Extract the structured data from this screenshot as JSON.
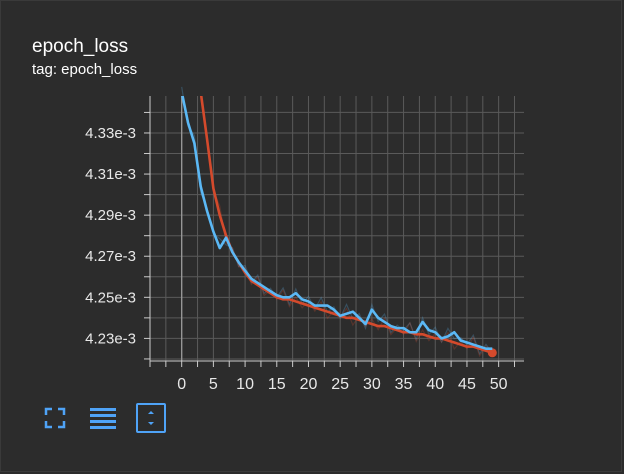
{
  "card": {
    "title": "epoch_loss",
    "subtitle": "tag: epoch_loss"
  },
  "toolbar": [
    {
      "name": "fullscreen-icon",
      "label": "Toggle expanded size"
    },
    {
      "name": "log-scale-icon",
      "label": "Toggle log scale"
    },
    {
      "name": "fit-domain-icon",
      "label": "Fit domain to data"
    }
  ],
  "colors": {
    "background": "#2c2c2c",
    "grid": "#5a5a5a",
    "axis_text": "#e8e8e8",
    "series_blue": "#5bb8f5",
    "series_red": "#d44a2c",
    "accent": "#4fa3f7"
  },
  "chart_data": {
    "type": "line",
    "title": "epoch_loss",
    "subtitle": "tag: epoch_loss",
    "xlabel": "",
    "ylabel": "",
    "xlim": [
      -5,
      54
    ],
    "ylim": [
      0.004219,
      0.004348
    ],
    "x_ticks": [
      0,
      5,
      10,
      15,
      20,
      25,
      30,
      35,
      40,
      45,
      50
    ],
    "y_ticks": [
      0.00423,
      0.00425,
      0.00427,
      0.00429,
      0.00431,
      0.00433
    ],
    "y_tick_labels": [
      "4.23e-3",
      "4.25e-3",
      "4.27e-3",
      "4.29e-3",
      "4.31e-3",
      "4.33e-3"
    ],
    "grid": true,
    "series": [
      {
        "color": "#5bb8f5",
        "x": [
          0,
          1,
          2,
          3,
          4,
          5,
          6,
          7,
          8,
          9,
          10,
          11,
          12,
          13,
          14,
          15,
          16,
          17,
          18,
          19,
          20,
          21,
          22,
          23,
          24,
          25,
          26,
          27,
          28,
          29,
          30,
          31,
          32,
          33,
          34,
          35,
          36,
          37,
          38,
          39,
          40,
          41,
          42,
          43,
          44,
          45,
          46,
          47,
          48,
          49
        ],
        "values": [
          0.00435,
          0.004335,
          0.004325,
          0.004304,
          0.004292,
          0.004282,
          0.004274,
          0.004279,
          0.004272,
          0.004267,
          0.004263,
          0.004259,
          0.004257,
          0.004255,
          0.004253,
          0.004251,
          0.00425,
          0.00425,
          0.004252,
          0.004249,
          0.004248,
          0.004246,
          0.004246,
          0.004246,
          0.004244,
          0.004241,
          0.004242,
          0.004243,
          0.00424,
          0.004237,
          0.004244,
          0.00424,
          0.004238,
          0.004236,
          0.004235,
          0.004235,
          0.004233,
          0.004233,
          0.004238,
          0.004234,
          0.004233,
          0.00423,
          0.004231,
          0.004233,
          0.004229,
          0.004228,
          0.004227,
          0.004226,
          0.004225,
          0.004225
        ]
      },
      {
        "color": "#d44a2c",
        "x": [
          3,
          4,
          5,
          6,
          7,
          8,
          9,
          10,
          11,
          12,
          13,
          14,
          15,
          16,
          17,
          18,
          19,
          20,
          21,
          22,
          23,
          24,
          25,
          26,
          27,
          28,
          29,
          30,
          31,
          32,
          33,
          34,
          35,
          36,
          37,
          38,
          39,
          40,
          41,
          42,
          43,
          44,
          45,
          46,
          47,
          48,
          49
        ],
        "values": [
          0.00435,
          0.004327,
          0.004303,
          0.00429,
          0.00428,
          0.004272,
          0.004267,
          0.004262,
          0.004258,
          0.004256,
          0.004254,
          0.004252,
          0.00425,
          0.004249,
          0.004249,
          0.004248,
          0.004247,
          0.004246,
          0.004245,
          0.004244,
          0.004243,
          0.004242,
          0.004241,
          0.00424,
          0.00424,
          0.004239,
          0.004238,
          0.004237,
          0.004236,
          0.004236,
          0.004235,
          0.004234,
          0.004233,
          0.004233,
          0.004232,
          0.004232,
          0.004231,
          0.00423,
          0.00423,
          0.004229,
          0.004228,
          0.004227,
          0.004226,
          0.004226,
          0.004225,
          0.004224,
          0.004223
        ]
      }
    ]
  }
}
